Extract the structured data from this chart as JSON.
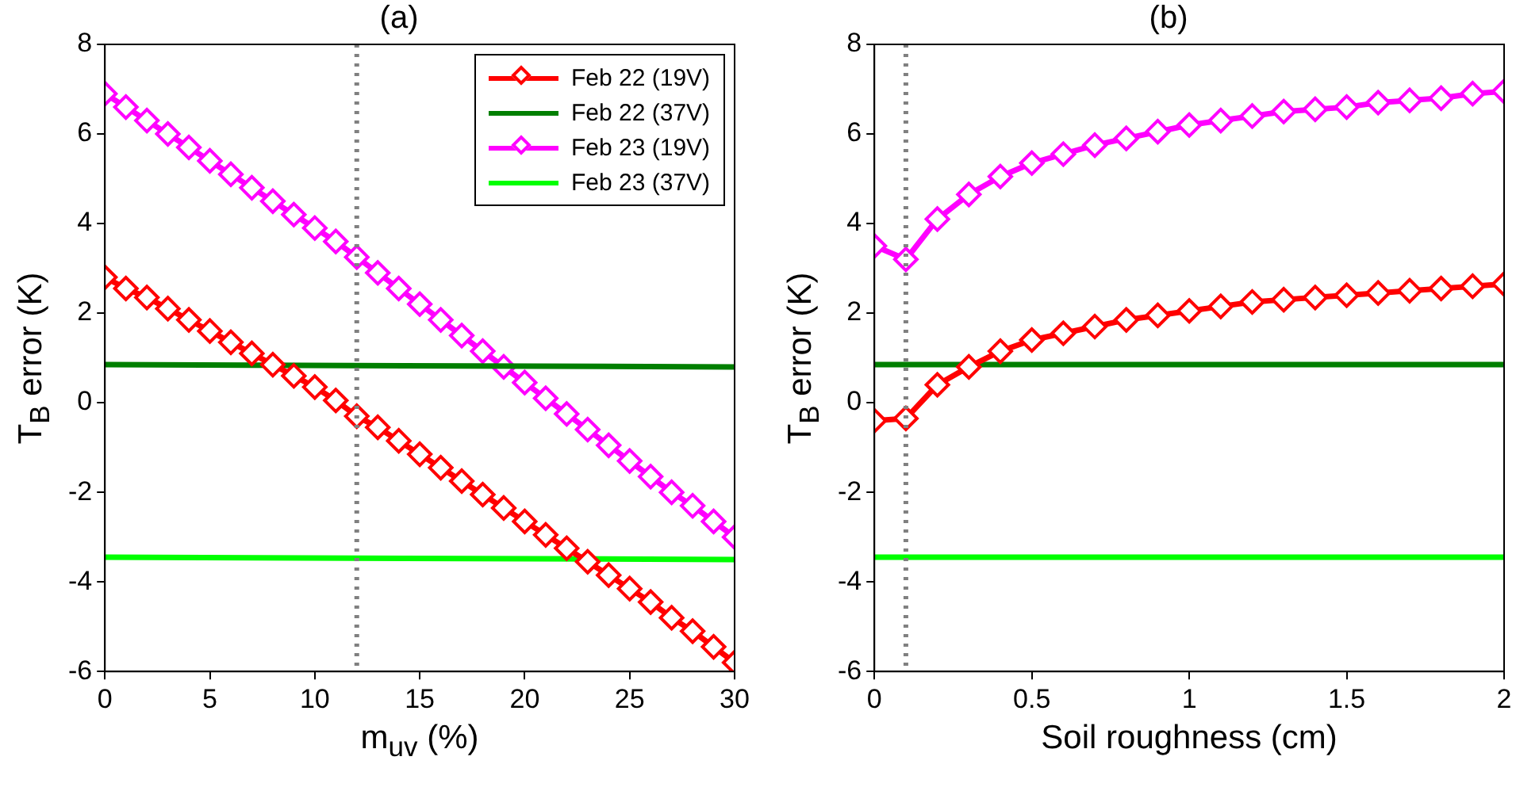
{
  "chart_data": [
    {
      "type": "line",
      "title": "(a)",
      "xlabel": "m$_{uv}$ (%)",
      "ylabel": "T$_{B}$ error (K)",
      "xlim": [
        0,
        30
      ],
      "xticks": [
        0,
        5,
        10,
        15,
        20,
        25,
        30
      ],
      "ylim": [
        -6,
        8
      ],
      "yticks": [
        -6,
        -4,
        -2,
        0,
        2,
        4,
        6,
        8
      ],
      "grid": false,
      "legend": "top right",
      "x": [
        0,
        1,
        2,
        3,
        4,
        5,
        6,
        7,
        8,
        9,
        10,
        11,
        12,
        13,
        14,
        15,
        16,
        17,
        18,
        19,
        20,
        21,
        22,
        23,
        24,
        25,
        26,
        27,
        28,
        29,
        30
      ],
      "series": [
        {
          "name": "Feb 22 (19V)",
          "color": "#ff0000",
          "marker": "diamond",
          "values": [
            2.8,
            2.55,
            2.35,
            2.1,
            1.85,
            1.6,
            1.35,
            1.1,
            0.85,
            0.6,
            0.35,
            0.05,
            -0.3,
            -0.55,
            -0.85,
            -1.15,
            -1.45,
            -1.75,
            -2.05,
            -2.35,
            -2.65,
            -2.95,
            -3.25,
            -3.55,
            -3.85,
            -4.15,
            -4.45,
            -4.8,
            -5.1,
            -5.45,
            -5.8
          ]
        },
        {
          "name": "Feb 22 (37V)",
          "color": "#007f00",
          "marker": "none",
          "x": [
            0,
            30
          ],
          "values": [
            0.85,
            0.8
          ]
        },
        {
          "name": "Feb 23 (19V)",
          "color": "#ff00ff",
          "marker": "diamond",
          "values": [
            6.9,
            6.6,
            6.3,
            6.0,
            5.7,
            5.4,
            5.1,
            4.8,
            4.5,
            4.2,
            3.9,
            3.6,
            3.25,
            2.9,
            2.55,
            2.2,
            1.85,
            1.5,
            1.15,
            0.8,
            0.45,
            0.1,
            -0.25,
            -0.6,
            -0.95,
            -1.3,
            -1.65,
            -2.0,
            -2.3,
            -2.65,
            -3.0
          ]
        },
        {
          "name": "Feb 23 (37V)",
          "color": "#00ff00",
          "marker": "none",
          "x": [
            0,
            30
          ],
          "values": [
            -3.45,
            -3.5
          ]
        }
      ],
      "ref_lines": [
        {
          "axis": "x",
          "value": 12,
          "color": "#808080",
          "line_style": "dotted"
        }
      ]
    },
    {
      "type": "line",
      "title": "(b)",
      "xlabel": "Soil roughness (cm)",
      "ylabel": "T$_{B}$ error (K)",
      "xlim": [
        0,
        2
      ],
      "xticks": [
        0,
        0.5,
        1,
        1.5,
        2
      ],
      "ylim": [
        -6,
        8
      ],
      "yticks": [
        -6,
        -4,
        -2,
        0,
        2,
        4,
        6,
        8
      ],
      "grid": false,
      "legend": false,
      "x": [
        0,
        0.1,
        0.2,
        0.3,
        0.4,
        0.5,
        0.6,
        0.7,
        0.8,
        0.9,
        1.0,
        1.1,
        1.2,
        1.3,
        1.4,
        1.5,
        1.6,
        1.7,
        1.8,
        1.9,
        2.0
      ],
      "series": [
        {
          "color": "#ff0000",
          "marker": "diamond",
          "values": [
            -0.4,
            -0.35,
            0.4,
            0.8,
            1.15,
            1.4,
            1.55,
            1.7,
            1.85,
            1.95,
            2.05,
            2.15,
            2.25,
            2.3,
            2.35,
            2.4,
            2.45,
            2.5,
            2.55,
            2.6,
            2.65
          ]
        },
        {
          "color": "#007f00",
          "marker": "none",
          "x": [
            0,
            2
          ],
          "values": [
            0.85,
            0.85
          ]
        },
        {
          "color": "#ff00ff",
          "marker": "diamond",
          "values": [
            3.5,
            3.2,
            4.1,
            4.65,
            5.05,
            5.35,
            5.55,
            5.75,
            5.9,
            6.05,
            6.2,
            6.3,
            6.4,
            6.5,
            6.55,
            6.6,
            6.7,
            6.75,
            6.8,
            6.9,
            6.95
          ]
        },
        {
          "color": "#00ff00",
          "marker": "none",
          "x": [
            0,
            2
          ],
          "values": [
            -3.45,
            -3.45
          ]
        }
      ],
      "ref_lines": [
        {
          "axis": "x",
          "value": 0.1,
          "color": "#808080",
          "line_style": "dotted"
        }
      ]
    }
  ]
}
